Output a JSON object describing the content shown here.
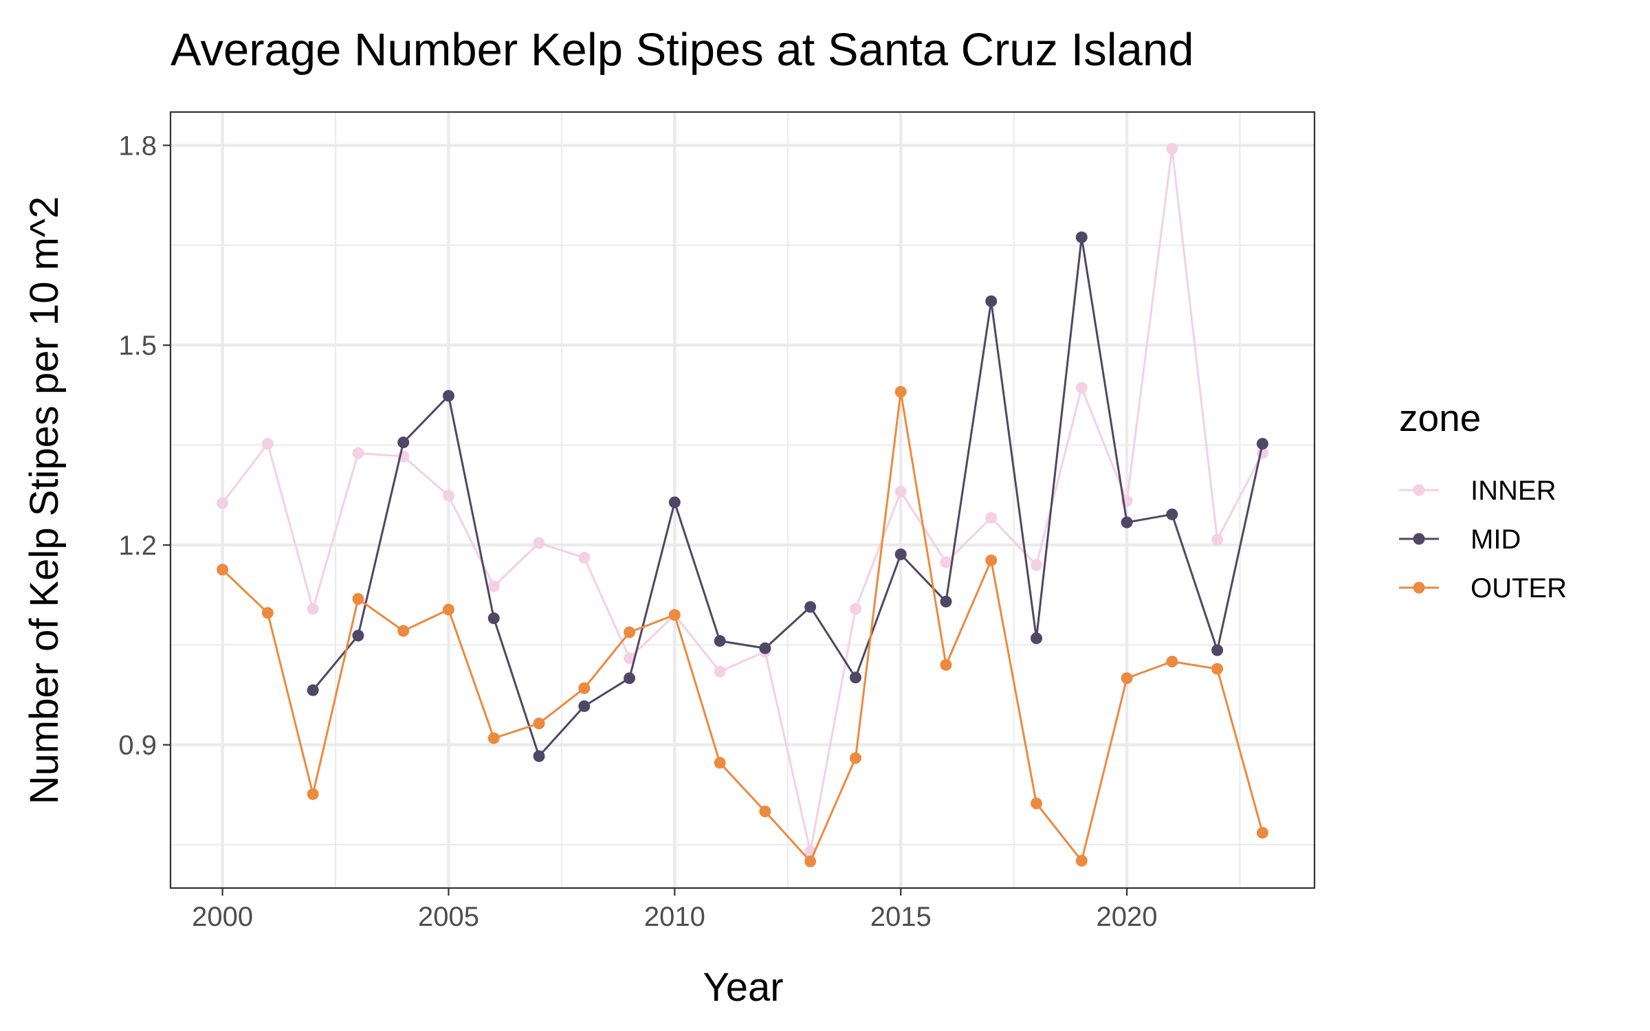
{
  "chart_data": {
    "type": "line",
    "title": "Average Number Kelp Stipes at Santa Cruz Island",
    "xlabel": "Year",
    "ylabel": "Number of Kelp Stipes per 10 m^2",
    "xlim": [
      1998.85,
      2024.15
    ],
    "ylim": [
      0.685,
      1.85
    ],
    "x_ticks": [
      2000,
      2005,
      2010,
      2015,
      2020
    ],
    "y_ticks": [
      0.9,
      1.2,
      1.5,
      1.8
    ],
    "x_tick_labels": [
      "2000",
      "2005",
      "2010",
      "2015",
      "2020"
    ],
    "y_tick_labels": [
      "0.9",
      "1.2",
      "1.5",
      "1.8"
    ],
    "grid": true,
    "legend": {
      "title": "zone",
      "position": "right"
    },
    "series": [
      {
        "name": "INNER",
        "color": "#f4d0e4",
        "points": [
          [
            2000,
            1.263
          ],
          [
            2001,
            1.352
          ],
          [
            2002,
            1.104
          ],
          [
            2003,
            1.338
          ],
          [
            2004,
            1.333
          ],
          [
            2005,
            1.274
          ],
          [
            2006,
            1.138
          ],
          [
            2007,
            1.203
          ],
          [
            2008,
            1.181
          ],
          [
            2009,
            1.03
          ],
          [
            2010,
            1.095
          ],
          [
            2011,
            1.01
          ],
          [
            2012,
            1.04
          ],
          [
            2013,
            0.74
          ],
          [
            2014,
            1.104
          ],
          [
            2015,
            1.28
          ],
          [
            2016,
            1.174
          ],
          [
            2017,
            1.241
          ],
          [
            2018,
            1.17
          ],
          [
            2019,
            1.436
          ],
          [
            2020,
            1.266
          ],
          [
            2021,
            1.795
          ],
          [
            2022,
            1.208
          ],
          [
            2023,
            1.338
          ]
        ]
      },
      {
        "name": "MID",
        "color": "#4f4766",
        "points": [
          [
            2002,
            0.982
          ],
          [
            2003,
            1.064
          ],
          [
            2004,
            1.354
          ],
          [
            2005,
            1.424
          ],
          [
            2006,
            1.09
          ],
          [
            2007,
            0.883
          ],
          [
            2008,
            0.958
          ],
          [
            2009,
            1.0
          ],
          [
            2010,
            1.264
          ],
          [
            2011,
            1.056
          ],
          [
            2012,
            1.045
          ],
          [
            2013,
            1.107
          ],
          [
            2014,
            1.001
          ],
          [
            2015,
            1.186
          ],
          [
            2016,
            1.115
          ],
          [
            2017,
            1.566
          ],
          [
            2018,
            1.06
          ],
          [
            2019,
            1.662
          ],
          [
            2020,
            1.234
          ],
          [
            2021,
            1.246
          ],
          [
            2022,
            1.042
          ],
          [
            2023,
            1.352
          ]
        ]
      },
      {
        "name": "OUTER",
        "color": "#ec8a3f",
        "points": [
          [
            2000,
            1.163
          ],
          [
            2001,
            1.098
          ],
          [
            2002,
            0.826
          ],
          [
            2003,
            1.119
          ],
          [
            2004,
            1.071
          ],
          [
            2005,
            1.103
          ],
          [
            2006,
            0.91
          ],
          [
            2007,
            0.932
          ],
          [
            2008,
            0.985
          ],
          [
            2009,
            1.069
          ],
          [
            2010,
            1.095
          ],
          [
            2011,
            0.873
          ],
          [
            2012,
            0.8
          ],
          [
            2013,
            0.725
          ],
          [
            2014,
            0.88
          ],
          [
            2015,
            1.43
          ],
          [
            2016,
            1.02
          ],
          [
            2017,
            1.177
          ],
          [
            2018,
            0.812
          ],
          [
            2019,
            0.726
          ],
          [
            2020,
            1.0
          ],
          [
            2021,
            1.025
          ],
          [
            2022,
            1.014
          ],
          [
            2023,
            0.768
          ]
        ]
      }
    ]
  }
}
